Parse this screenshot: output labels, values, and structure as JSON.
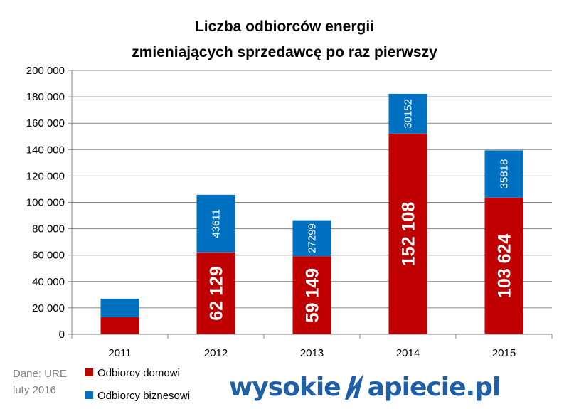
{
  "chart_data": {
    "type": "bar",
    "stacked": true,
    "title_line1": "Liczba odbiorców energii",
    "title_line2": "zmieniających sprzedawcę po raz pierwszy",
    "categories": [
      "2011",
      "2012",
      "2013",
      "2014",
      "2015"
    ],
    "series": [
      {
        "name": "Odbiorcy domowi",
        "color": "#c00000",
        "values": [
          13000,
          62129,
          59149,
          152108,
          103624
        ],
        "labels": [
          "",
          "62 129",
          "59 149",
          "152 108",
          "103 624"
        ]
      },
      {
        "name": "Odbiorcy biznesowi",
        "color": "#0070c0",
        "values": [
          14000,
          43611,
          27299,
          30152,
          35818
        ],
        "labels": [
          "",
          "43611",
          "27299",
          "30152",
          "35818"
        ]
      }
    ],
    "ylim": [
      0,
      200000
    ],
    "ytick_step": 20000,
    "ytick_labels": [
      "0",
      "20 000",
      "40 000",
      "60 000",
      "80 000",
      "100 000",
      "120 000",
      "140 000",
      "160 000",
      "180 000",
      "200 000"
    ],
    "grid": true,
    "legend_position": "bottom-left"
  },
  "source": {
    "line1": "Dane: URE",
    "line2": "luty 2016"
  },
  "logo": {
    "left": "wysokie",
    "right": "apiecie.pl"
  }
}
